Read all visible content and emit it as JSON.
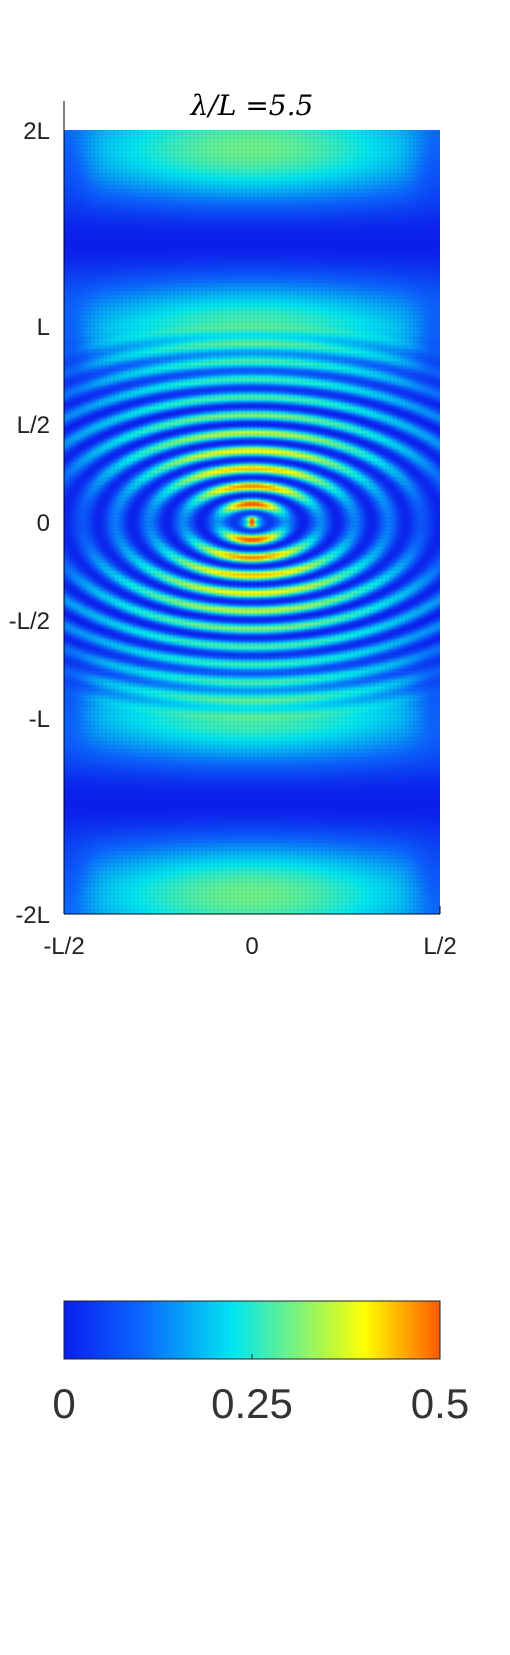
{
  "chart_data": {
    "type": "heatmap",
    "title": "λ/L =5.5",
    "xlabel": "",
    "ylabel": "",
    "x_ticks": [
      {
        "value": -0.5,
        "label": "-L/2"
      },
      {
        "value": 0,
        "label": "0"
      },
      {
        "value": 0.5,
        "label": "L/2"
      }
    ],
    "y_ticks": [
      {
        "value": 2,
        "label": "2L"
      },
      {
        "value": 1,
        "label": "L"
      },
      {
        "value": 0.5,
        "label": "L/2"
      },
      {
        "value": 0,
        "label": "0"
      },
      {
        "value": -0.5,
        "label": "-L/2"
      },
      {
        "value": -1,
        "label": "-L"
      },
      {
        "value": -2,
        "label": "-2L"
      }
    ],
    "xlim": [
      -0.5,
      0.5
    ],
    "ylim": [
      -2,
      2
    ],
    "colorbar": {
      "range": [
        0,
        0.5
      ],
      "ticks": [
        {
          "value": 0,
          "label": "0"
        },
        {
          "value": 0.25,
          "label": "0.25"
        },
        {
          "value": 0.5,
          "label": "0.5"
        }
      ],
      "colors": [
        "#0a1ef0",
        "#0a64ff",
        "#00e6f0",
        "#ffff00",
        "#ff5a00"
      ]
    },
    "grid": false,
    "vector_overlay": true,
    "description_params": {
      "wavelength_ratio": 5.5
    }
  }
}
